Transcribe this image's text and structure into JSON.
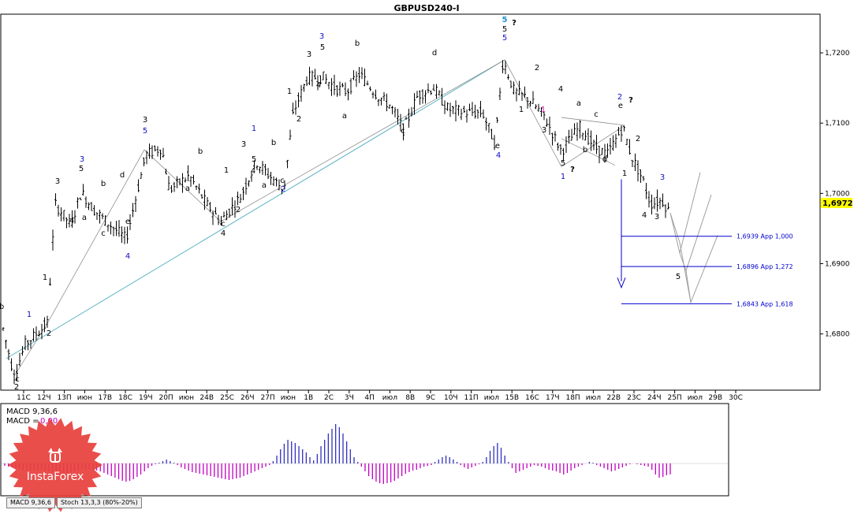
{
  "window": {
    "title": "GBPUSD240-I"
  },
  "colors": {
    "wave_blue": "#1010c0",
    "wave_cyan": "#1e90d0",
    "macd_pos": "#3030c0",
    "macd_neg": "#c000c0",
    "fib": "#0000cc",
    "trend": "#5fb3c8",
    "projection": "#a0a0a0",
    "price_tag": "#ffff00",
    "logo": "#e8403c"
  },
  "price_panel": {
    "current_price": "1,6972",
    "y_ticks": [
      "1,7200",
      "1,7100",
      "1,7000",
      "1,6900",
      "1,6800"
    ],
    "ylim": [
      1.672,
      1.7255
    ]
  },
  "time_axis": {
    "labels": [
      "11С",
      "12Ч",
      "13П",
      "июн",
      "17В",
      "18С",
      "19Ч",
      "20П",
      "июн",
      "24В",
      "25С",
      "26Ч",
      "27П",
      "июн",
      "1В",
      "2С",
      "3Ч",
      "4П",
      "июл",
      "8В",
      "9С",
      "10Ч",
      "11П",
      "июл",
      "15В",
      "16С",
      "17Ч",
      "18П",
      "июл",
      "22В",
      "23С",
      "24Ч",
      "25П",
      "июл",
      "29В",
      "30С"
    ]
  },
  "fib_levels": [
    {
      "price": 1.6939,
      "label": "1,6939 App 1,000"
    },
    {
      "price": 1.6896,
      "label": "1,6896 App 1,272"
    },
    {
      "price": 1.6843,
      "label": "1,6843 App 1,618"
    }
  ],
  "wave_labels": [
    {
      "text": "b",
      "color": "black"
    },
    {
      "text": "c",
      "color": "black"
    },
    {
      "text": "2",
      "color": "black"
    },
    {
      "text": "1",
      "color": "blue"
    },
    {
      "text": "1",
      "color": "black"
    },
    {
      "text": "2",
      "color": "black"
    },
    {
      "text": "3",
      "color": "black"
    },
    {
      "text": "4",
      "color": "black"
    },
    {
      "text": "3",
      "color": "blue"
    },
    {
      "text": "5",
      "color": "black"
    },
    {
      "text": "a",
      "color": "black"
    },
    {
      "text": "b",
      "color": "black"
    },
    {
      "text": "c",
      "color": "black"
    },
    {
      "text": "d",
      "color": "black"
    },
    {
      "text": "e",
      "color": "black"
    },
    {
      "text": "4",
      "color": "blue"
    },
    {
      "text": "3",
      "color": "black"
    },
    {
      "text": "5",
      "color": "blue"
    },
    {
      "text": "b",
      "color": "black"
    },
    {
      "text": "a",
      "color": "black"
    },
    {
      "text": "c",
      "color": "black"
    },
    {
      "text": "4",
      "color": "black"
    },
    {
      "text": "1",
      "color": "black"
    },
    {
      "text": "2",
      "color": "black"
    },
    {
      "text": "1",
      "color": "blue"
    },
    {
      "text": "3",
      "color": "black"
    },
    {
      "text": "5",
      "color": "black"
    },
    {
      "text": "4",
      "color": "black"
    },
    {
      "text": "a",
      "color": "black"
    },
    {
      "text": "b",
      "color": "black"
    },
    {
      "text": "c",
      "color": "black"
    },
    {
      "text": "2",
      "color": "blue"
    },
    {
      "text": "1",
      "color": "black"
    },
    {
      "text": "2",
      "color": "black"
    },
    {
      "text": "3",
      "color": "blue"
    },
    {
      "text": "3",
      "color": "black"
    },
    {
      "text": "5",
      "color": "black"
    },
    {
      "text": "4",
      "color": "black"
    },
    {
      "text": "a",
      "color": "black"
    },
    {
      "text": "b",
      "color": "black"
    },
    {
      "text": "c",
      "color": "black"
    },
    {
      "text": "d",
      "color": "black"
    },
    {
      "text": "e",
      "color": "black"
    },
    {
      "text": "4",
      "color": "blue"
    },
    {
      "text": "5",
      "color": "cyan"
    },
    {
      "text": "5",
      "color": "black"
    },
    {
      "text": "5",
      "color": "blue"
    },
    {
      "text": "?",
      "color": "black"
    },
    {
      "text": "1",
      "color": "black"
    },
    {
      "text": "2",
      "color": "black"
    },
    {
      "text": "3",
      "color": "black"
    },
    {
      "text": "4",
      "color": "black"
    },
    {
      "text": "1",
      "color": "magenta"
    },
    {
      "text": "5",
      "color": "black"
    },
    {
      "text": "1",
      "color": "blue"
    },
    {
      "text": "?",
      "color": "black"
    },
    {
      "text": "a",
      "color": "black"
    },
    {
      "text": "b",
      "color": "black"
    },
    {
      "text": "c",
      "color": "black"
    },
    {
      "text": "d",
      "color": "black"
    },
    {
      "text": "2",
      "color": "blue"
    },
    {
      "text": "e",
      "color": "black"
    },
    {
      "text": "?",
      "color": "black"
    },
    {
      "text": "1",
      "color": "black"
    },
    {
      "text": "2",
      "color": "black"
    },
    {
      "text": "3",
      "color": "black"
    },
    {
      "text": "4",
      "color": "black"
    },
    {
      "text": "5",
      "color": "black"
    },
    {
      "text": "3",
      "color": "blue"
    }
  ],
  "indicator": {
    "label_params": "MACD 9,36,6",
    "label_value_prefix": "MACD =",
    "label_value": "0,00",
    "tabs": [
      "MACD 9,36,6",
      "Stoch 13,3,3 (80%-20%)"
    ]
  },
  "logo": {
    "text": "InstaForex",
    "icon": "bull-icon"
  },
  "chart_data": {
    "type": "candlestick",
    "title": "GBPUSD240-I",
    "ylim": [
      1.672,
      1.7255
    ],
    "indicator_series": {
      "name": "MACD 9,36,6",
      "values": [
        -3,
        -4,
        -5,
        -6,
        -7,
        -8,
        -8,
        -9,
        -9,
        -8,
        -8,
        -9,
        -10,
        -11,
        -12,
        -13,
        -13,
        -12,
        -11,
        -10,
        -9,
        -8,
        -8,
        -7,
        -8,
        -9,
        -10,
        -12,
        -14,
        -16,
        -18,
        -20,
        -22,
        -23,
        -22,
        -20,
        -17,
        -14,
        -10,
        -6,
        -3,
        -1,
        1,
        3,
        5,
        3,
        1,
        -2,
        -5,
        -7,
        -9,
        -11,
        -12,
        -13,
        -14,
        -15,
        -16,
        -17,
        -18,
        -19,
        -20,
        -21,
        -20,
        -19,
        -18,
        -16,
        -14,
        -12,
        -10,
        -8,
        -6,
        -4,
        -2,
        3,
        10,
        18,
        25,
        30,
        28,
        26,
        22,
        18,
        14,
        8,
        4,
        12,
        22,
        30,
        38,
        44,
        50,
        46,
        38,
        28,
        18,
        8,
        2,
        -4,
        -10,
        -16,
        -20,
        -23,
        -25,
        -26,
        -25,
        -24,
        -22,
        -19,
        -16,
        -13,
        -11,
        -9,
        -8,
        -6,
        -4,
        -3,
        -2,
        2,
        5,
        8,
        10,
        8,
        5,
        2,
        -2,
        -5,
        -7,
        -5,
        -3,
        -1,
        2,
        8,
        16,
        22,
        26,
        20,
        10,
        2,
        -6,
        -12,
        -10,
        -8,
        -6,
        -4,
        -2,
        -3,
        -4,
        -6,
        -8,
        -9,
        -10,
        -12,
        -14,
        -12,
        -9,
        -6,
        -4,
        -2,
        0,
        2,
        1,
        -2,
        -4,
        -6,
        -8,
        -10,
        -9,
        -7,
        -5,
        -3,
        -1,
        0,
        -1,
        -2,
        -3,
        -4,
        -8,
        -14,
        -18,
        -17,
        -15,
        -14
      ]
    }
  }
}
